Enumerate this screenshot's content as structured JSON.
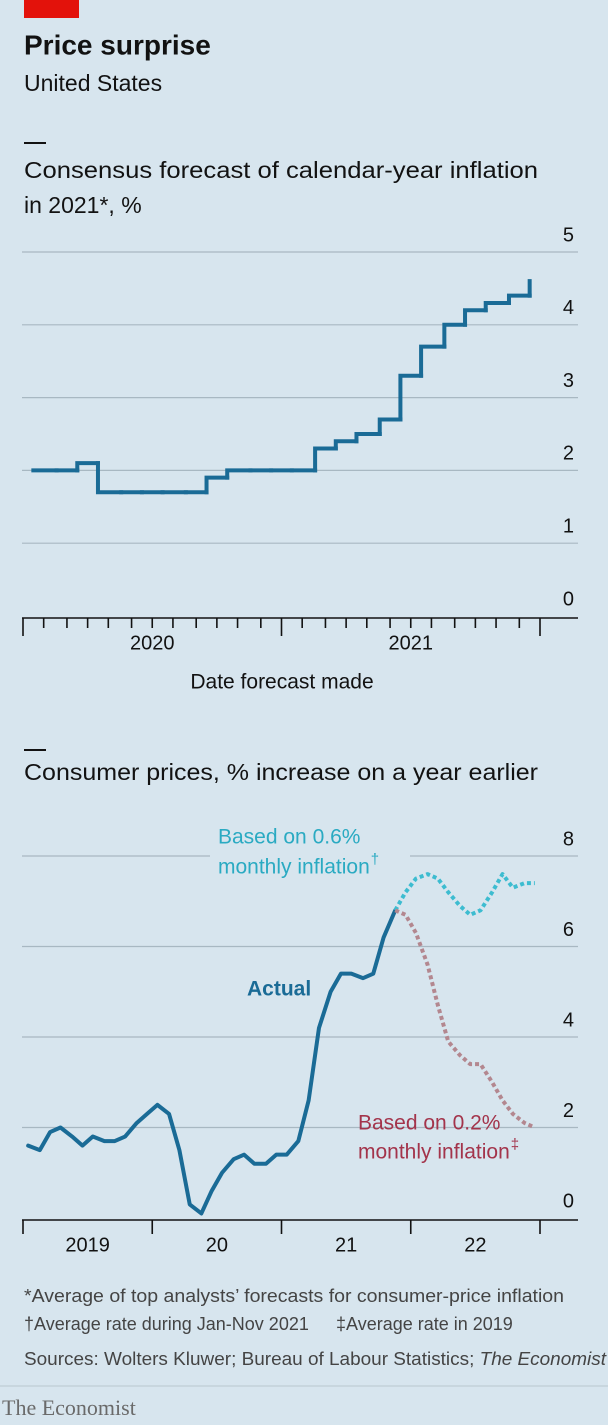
{
  "header": {
    "title": "Price surprise",
    "subtitle": "United States"
  },
  "chart_data": [
    {
      "type": "line",
      "step": true,
      "title_lines": [
        "Consensus forecast of calendar-year inflation",
        "in 2021*, %"
      ],
      "x_label": "Date forecast made",
      "x": [
        2020.04,
        2020.13,
        2020.21,
        2020.29,
        2020.38,
        2020.46,
        2020.54,
        2020.63,
        2020.71,
        2020.79,
        2020.88,
        2020.96,
        2021.04,
        2021.13,
        2021.21,
        2021.29,
        2021.38,
        2021.46,
        2021.54,
        2021.63,
        2021.71,
        2021.79,
        2021.88,
        2021.96
      ],
      "series": [
        {
          "color": "#1a6b96",
          "values": [
            2,
            2,
            2.1,
            1.7,
            1.7,
            1.7,
            1.7,
            1.7,
            1.9,
            2,
            2,
            2,
            2,
            2.3,
            2.4,
            2.5,
            2.7,
            3.3,
            3.7,
            4,
            4.2,
            4.3,
            4.4,
            4.6
          ]
        }
      ],
      "xlim": [
        2020,
        2022
      ],
      "xticks": [
        2020,
        2020.08,
        2020.17,
        2020.25,
        2020.33,
        2020.42,
        2020.5,
        2020.58,
        2020.67,
        2020.75,
        2020.83,
        2020.92,
        2021,
        2021.08,
        2021.17,
        2021.25,
        2021.33,
        2021.42,
        2021.5,
        2021.58,
        2021.67,
        2021.75,
        2021.83,
        2021.92,
        2022
      ],
      "xtick_labels": [
        {
          "value": 2020.5,
          "label": "2020"
        },
        {
          "value": 2021.5,
          "label": "2021"
        }
      ],
      "ylim": [
        0,
        5
      ],
      "yticks": [
        0,
        1,
        2,
        3,
        4,
        5
      ],
      "grid": true
    },
    {
      "type": "line",
      "step": false,
      "title_lines": [
        "Consumer prices, % increase on a year earlier"
      ],
      "x": [
        2019.04,
        2019.13,
        2019.21,
        2019.29,
        2019.38,
        2019.46,
        2019.54,
        2019.63,
        2019.71,
        2019.79,
        2019.88,
        2019.96,
        2020.04,
        2020.13,
        2020.21,
        2020.29,
        2020.38,
        2020.46,
        2020.54,
        2020.63,
        2020.71,
        2020.79,
        2020.88,
        2020.96,
        2021.04,
        2021.13,
        2021.21,
        2021.29,
        2021.38,
        2021.46,
        2021.54,
        2021.63,
        2021.71,
        2021.79,
        2021.88,
        2021.96,
        2022.04,
        2022.13,
        2022.21,
        2022.29,
        2022.38,
        2022.46,
        2022.54,
        2022.63,
        2022.71,
        2022.79,
        2022.88,
        2022.96
      ],
      "series": [
        {
          "name": "Actual",
          "color": "#1a6b96",
          "dotted": false,
          "values": [
            1.6,
            1.5,
            1.9,
            2,
            1.8,
            1.6,
            1.8,
            1.7,
            1.7,
            1.8,
            2.1,
            2.3,
            2.5,
            2.3,
            1.5,
            0.3,
            0.1,
            0.6,
            1,
            1.3,
            1.4,
            1.2,
            1.2,
            1.4,
            1.4,
            1.7,
            2.6,
            4.2,
            5,
            5.4,
            5.4,
            5.3,
            5.4,
            6.2,
            6.8,
            null,
            null,
            null,
            null,
            null,
            null,
            null,
            null,
            null,
            null,
            null,
            null,
            null
          ]
        },
        {
          "name_lines": [
            "Based on 0.6%",
            "monthly inflation"
          ],
          "name_mark": "†",
          "color": "#3dbcd0",
          "label_color": "#2aaac2",
          "dotted": true,
          "values": [
            null,
            null,
            null,
            null,
            null,
            null,
            null,
            null,
            null,
            null,
            null,
            null,
            null,
            null,
            null,
            null,
            null,
            null,
            null,
            null,
            null,
            null,
            null,
            null,
            null,
            null,
            null,
            null,
            null,
            null,
            null,
            null,
            null,
            null,
            6.8,
            7.2,
            7.5,
            7.6,
            7.5,
            7.2,
            6.9,
            6.7,
            6.8,
            7.2,
            7.6,
            7.3,
            7.4,
            7.4
          ]
        },
        {
          "name_lines": [
            "Based on 0.2%",
            "monthly inflation"
          ],
          "name_mark": "‡",
          "color": "#b3878f",
          "label_color": "#a3344b",
          "dotted": true,
          "values": [
            null,
            null,
            null,
            null,
            null,
            null,
            null,
            null,
            null,
            null,
            null,
            null,
            null,
            null,
            null,
            null,
            null,
            null,
            null,
            null,
            null,
            null,
            null,
            null,
            null,
            null,
            null,
            null,
            null,
            null,
            null,
            null,
            null,
            null,
            6.8,
            6.7,
            6.3,
            5.6,
            4.7,
            3.9,
            3.6,
            3.4,
            3.4,
            3,
            2.6,
            2.3,
            2.1,
            2
          ]
        }
      ],
      "xlim": [
        2019,
        2023
      ],
      "xticks": [
        2019,
        2020,
        2021,
        2022,
        2023
      ],
      "xtick_labels": [
        {
          "value": 2019.5,
          "label": "2019"
        },
        {
          "value": 2020.5,
          "label": "20"
        },
        {
          "value": 2021.5,
          "label": "21"
        },
        {
          "value": 2022.5,
          "label": "22"
        }
      ],
      "ylim": [
        0,
        8
      ],
      "yticks": [
        0,
        2,
        4,
        6,
        8
      ],
      "grid": true
    }
  ],
  "footer": {
    "notes": [
      "*Average of top analysts’ forecasts for consumer-price inflation",
      "†Average rate during Jan-Nov 2021",
      "‡Average rate in 2019"
    ],
    "sources": [
      "Sources: Wolters Kluwer; Bureau of Labour Statistics; ",
      "The Economist"
    ],
    "brand": "The Economist"
  }
}
